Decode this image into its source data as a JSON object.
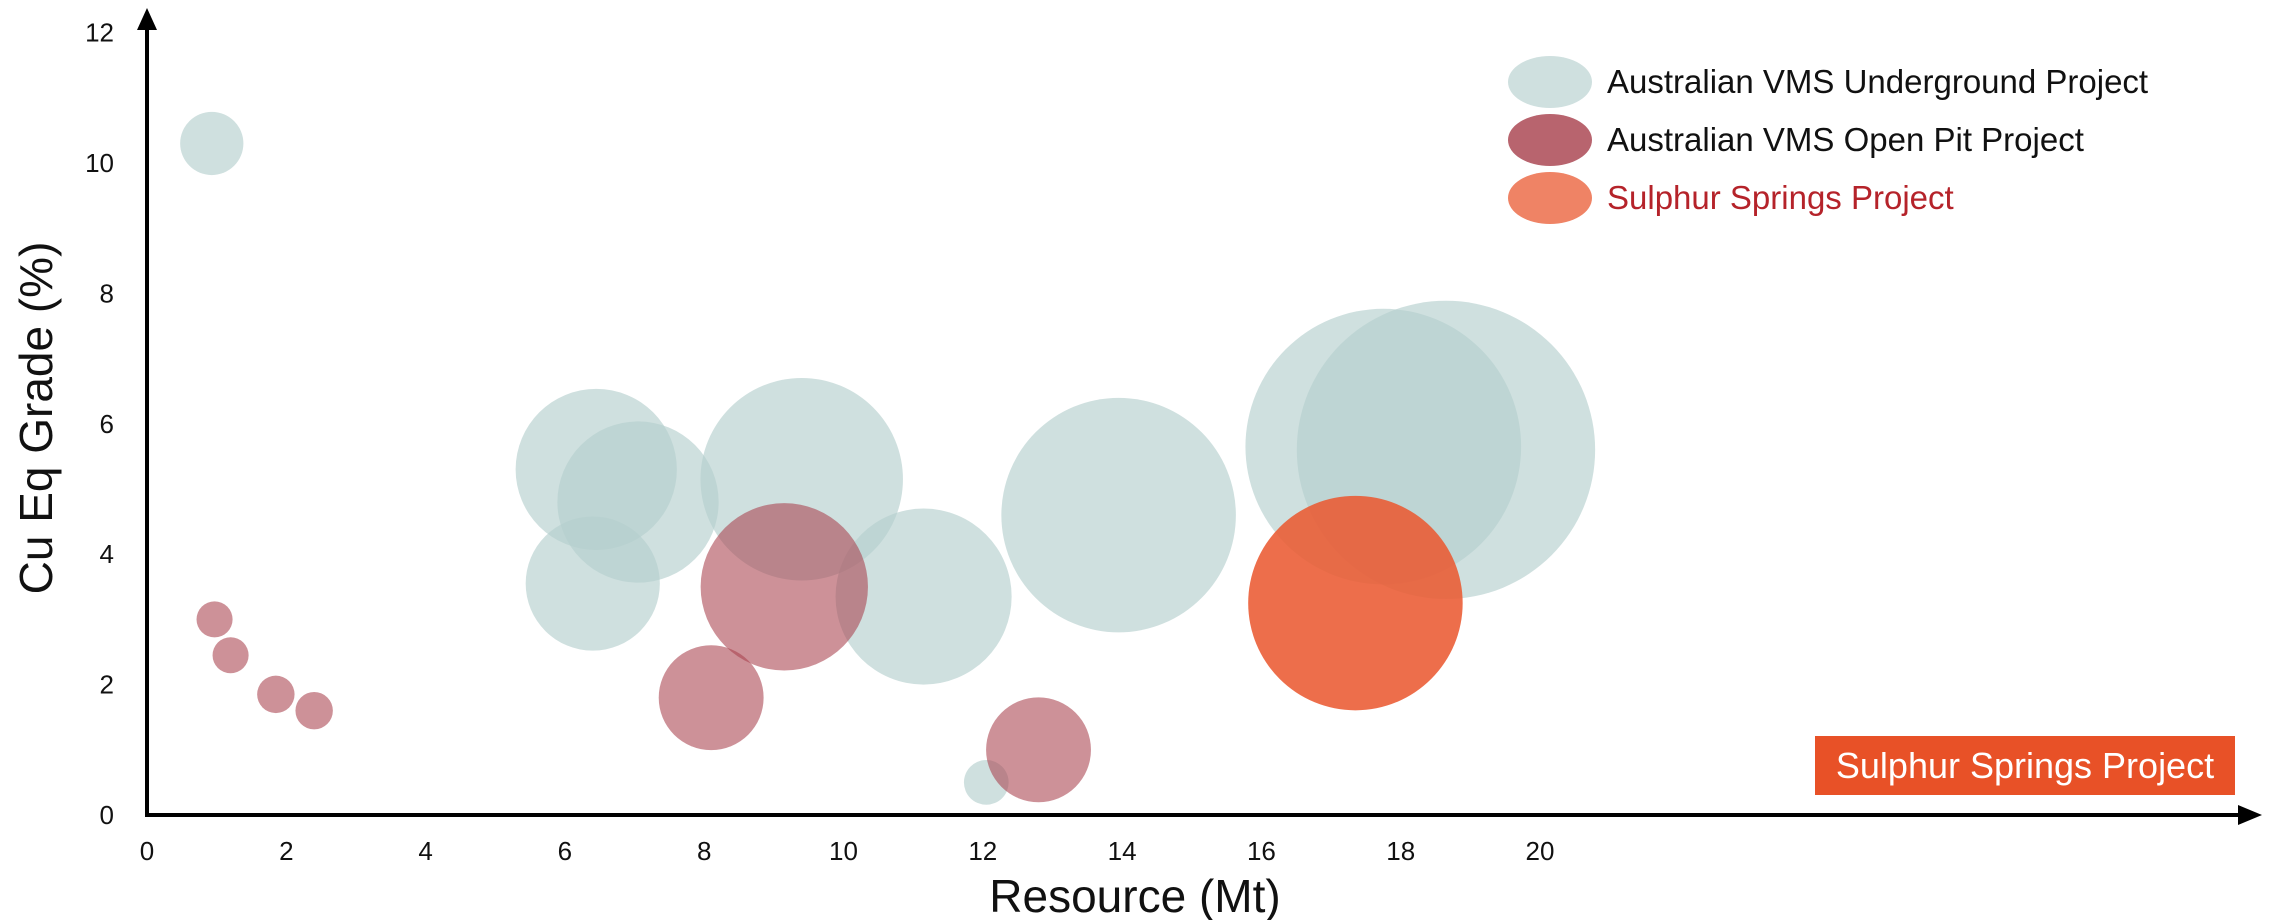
{
  "chart_data": {
    "type": "scatter",
    "subtype": "bubble",
    "xlabel": "Resource (Mt)",
    "ylabel": "Cu Eq Grade (%)",
    "xlim": [
      0,
      21
    ],
    "ylim": [
      0,
      12
    ],
    "xticks": [
      "0",
      "2",
      "4",
      "6",
      "8",
      "10",
      "12",
      "14",
      "16",
      "18",
      "20"
    ],
    "yticks": [
      "0",
      "2",
      "4",
      "6",
      "8",
      "10",
      "12"
    ],
    "grid": false,
    "legend_position": "top-right",
    "colors": {
      "underground": "#b5d0ce",
      "open_pit": "#a8424e",
      "sulphur": "#ea5a32",
      "sulphur_legend_text": "#b5232a",
      "callout_bg": "#e85127"
    },
    "series": [
      {
        "name": "Australian VMS Underground Project",
        "points": [
          {
            "x": 0.93,
            "y": 10.3,
            "size": 0.4
          },
          {
            "x": 6.45,
            "y": 5.3,
            "size": 2.6
          },
          {
            "x": 7.05,
            "y": 4.8,
            "size": 2.6
          },
          {
            "x": 6.4,
            "y": 3.55,
            "size": 1.8
          },
          {
            "x": 9.4,
            "y": 5.15,
            "size": 4.1
          },
          {
            "x": 11.15,
            "y": 3.35,
            "size": 3.1
          },
          {
            "x": 12.05,
            "y": 0.5,
            "size": 0.2
          },
          {
            "x": 13.95,
            "y": 4.6,
            "size": 5.5
          },
          {
            "x": 17.75,
            "y": 5.65,
            "size": 7.6
          },
          {
            "x": 18.65,
            "y": 5.6,
            "size": 8.9
          }
        ]
      },
      {
        "name": "Australian VMS Open Pit Project",
        "points": [
          {
            "x": 0.97,
            "y": 3.0,
            "size": 0.13
          },
          {
            "x": 1.2,
            "y": 2.45,
            "size": 0.13
          },
          {
            "x": 1.85,
            "y": 1.85,
            "size": 0.14
          },
          {
            "x": 2.4,
            "y": 1.6,
            "size": 0.14
          },
          {
            "x": 8.1,
            "y": 1.8,
            "size": 1.1
          },
          {
            "x": 9.15,
            "y": 3.5,
            "size": 2.8
          },
          {
            "x": 12.8,
            "y": 1.0,
            "size": 1.1
          }
        ]
      },
      {
        "name": "Sulphur Springs Project",
        "points": [
          {
            "x": 17.35,
            "y": 3.25,
            "size": 4.6
          }
        ]
      }
    ],
    "annotations": [
      {
        "text": "Sulphur Springs Project",
        "anchor": "bottom-right"
      }
    ]
  }
}
